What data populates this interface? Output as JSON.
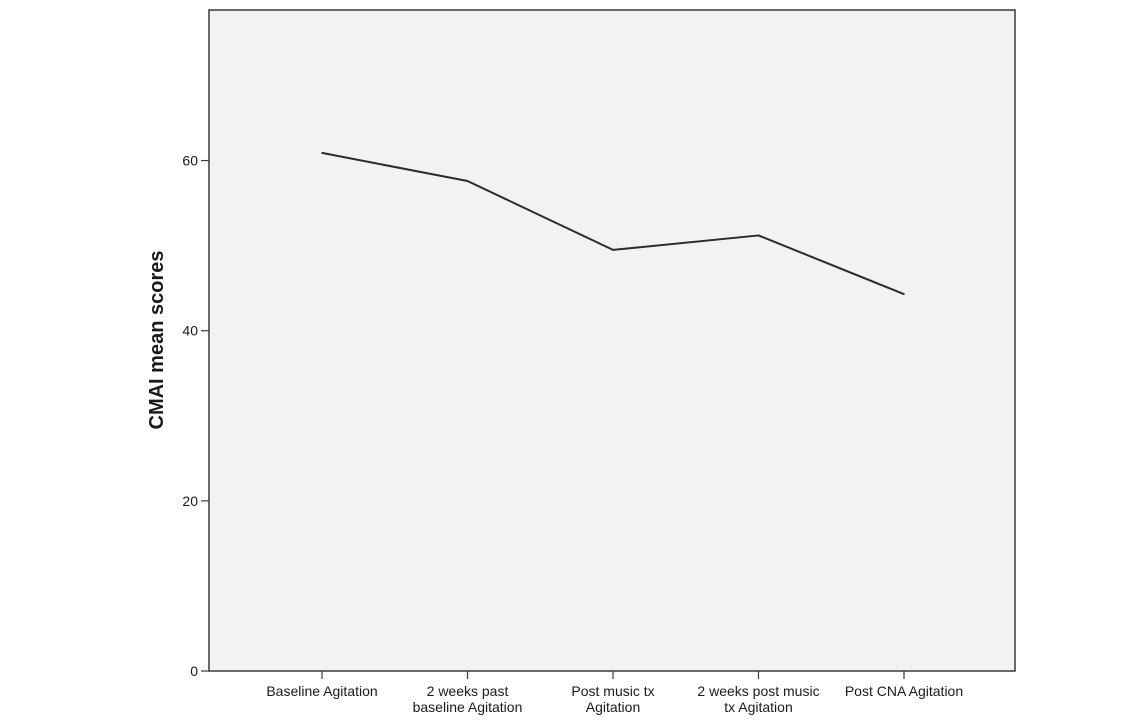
{
  "chart_data": {
    "type": "line",
    "title": "",
    "xlabel": "",
    "ylabel": "CMAI mean scores",
    "categories": [
      [
        "Baseline Agitation"
      ],
      [
        "2 weeks past",
        "baseline Agitation"
      ],
      [
        "Post music tx",
        "Agitation"
      ],
      [
        "2 weeks post music",
        "tx Agitation"
      ],
      [
        "Post CNA Agitation"
      ]
    ],
    "series": [
      {
        "values": [
          60.9,
          57.6,
          49.5,
          51.2,
          44.3
        ]
      }
    ],
    "ylim": [
      0,
      77.7
    ],
    "yticks": [
      0,
      20,
      40,
      60
    ],
    "grid": false,
    "legend": "none",
    "colors": {
      "plot_background": "#f2f2f3",
      "plot_border": "#3a3a3a",
      "line": "#2b2b2b",
      "text": "#1a1a1a"
    }
  }
}
